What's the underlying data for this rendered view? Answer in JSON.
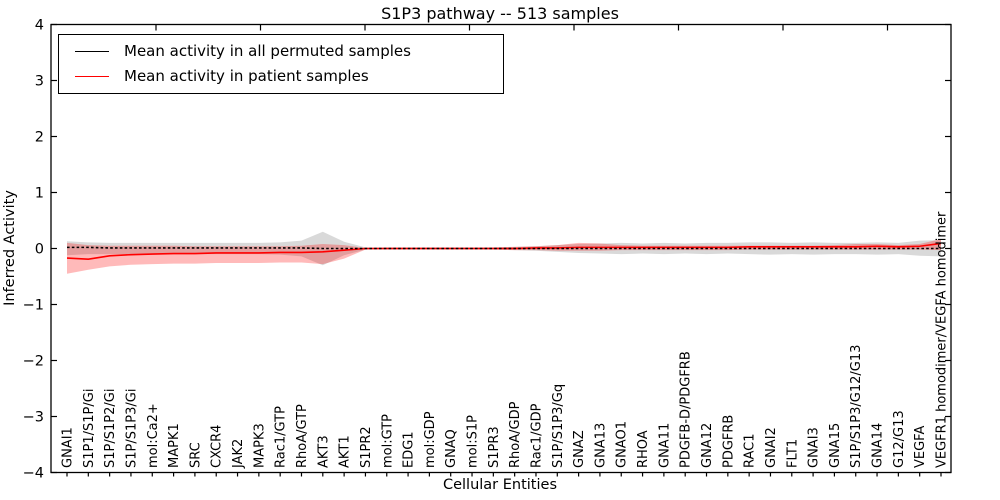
{
  "figure": {
    "title": "S1P3 pathway -- 513 samples",
    "xlabel": "Cellular Entities",
    "ylabel": "Inferred Activity"
  },
  "chart_data": {
    "type": "line",
    "title": "S1P3 pathway -- 513 samples",
    "xlabel": "Cellular Entities",
    "ylabel": "Inferred Activity",
    "ylim": [
      -4,
      4
    ],
    "ytick_labels": [
      "4",
      "3",
      "2",
      "1",
      "0",
      "−1",
      "−2",
      "−3",
      "−4"
    ],
    "yticks": [
      4,
      3,
      2,
      1,
      0,
      -1,
      -2,
      -3,
      -4
    ],
    "grid": false,
    "legend_position": "upper left",
    "categories": [
      "GNAI1",
      "S1P1/S1P/Gi",
      "S1P/S1P2/Gi",
      "S1P/S1P3/Gi",
      "mol:Ca2+",
      "MAPK1",
      "SRC",
      "CXCR4",
      "JAK2",
      "MAPK3",
      "Rac1/GTP",
      "RhoA/GTP",
      "AKT3",
      "AKT1",
      "S1PR2",
      "mol:GTP",
      "EDG1",
      "mol:GDP",
      "GNAQ",
      "mol:S1P",
      "S1PR3",
      "RhoA/GDP",
      "Rac1/GDP",
      "S1P/S1P3/Gq",
      "GNAZ",
      "GNA13",
      "GNAO1",
      "RHOA",
      "GNA11",
      "PDGFB-D/PDGFRB",
      "GNA12",
      "PDGFRB",
      "RAC1",
      "GNAI2",
      "FLT1",
      "GNAI3",
      "GNA15",
      "S1P/S1P3/G12/G13",
      "GNA14",
      "G12/G13",
      "VEGFA",
      "VEGFR1 homodimer/VEGFA homodimer"
    ],
    "series": [
      {
        "name": "Mean activity in all permuted samples",
        "color": "#000000",
        "style": "dotted",
        "values": [
          0.02,
          0.02,
          0.01,
          0.01,
          0.01,
          0.01,
          0.01,
          0.01,
          0.01,
          0.01,
          0.01,
          0.01,
          0,
          0,
          0,
          0,
          0,
          0,
          0,
          0,
          0,
          0,
          0,
          0,
          0,
          0,
          0,
          0,
          0,
          0,
          0,
          0,
          0,
          0,
          0,
          0,
          0,
          0,
          0,
          0,
          0,
          0
        ]
      },
      {
        "name": "Mean activity in patient samples",
        "color": "#ff0000",
        "style": "solid",
        "values": [
          -0.17,
          -0.19,
          -0.13,
          -0.11,
          -0.1,
          -0.09,
          -0.09,
          -0.08,
          -0.08,
          -0.08,
          -0.07,
          -0.07,
          -0.06,
          -0.03,
          0,
          0,
          0,
          0,
          0,
          0,
          0,
          0,
          0.01,
          0.01,
          0.02,
          0.02,
          0.02,
          0.02,
          0.02,
          0.02,
          0.02,
          0.02,
          0.03,
          0.03,
          0.03,
          0.03,
          0.03,
          0.03,
          0.04,
          0.03,
          0.04,
          0.09
        ]
      }
    ],
    "bands": [
      {
        "name": "permuted-samples-range",
        "color": "#787878",
        "alpha": 0.28,
        "lo": [
          -0.12,
          -0.1,
          -0.1,
          -0.1,
          -0.1,
          -0.1,
          -0.1,
          -0.1,
          -0.1,
          -0.1,
          -0.11,
          -0.14,
          -0.3,
          -0.12,
          -0.02,
          -0.015,
          -0.015,
          -0.015,
          -0.015,
          -0.015,
          -0.02,
          -0.03,
          -0.04,
          -0.06,
          -0.08,
          -0.09,
          -0.1,
          -0.09,
          -0.1,
          -0.09,
          -0.1,
          -0.09,
          -0.1,
          -0.11,
          -0.1,
          -0.11,
          -0.1,
          -0.1,
          -0.11,
          -0.1,
          -0.13,
          -0.14
        ],
        "hi": [
          0.13,
          0.11,
          0.1,
          0.1,
          0.1,
          0.1,
          0.1,
          0.1,
          0.1,
          0.1,
          0.11,
          0.14,
          0.3,
          0.12,
          0.02,
          0.015,
          0.015,
          0.015,
          0.015,
          0.015,
          0.02,
          0.03,
          0.04,
          0.06,
          0.08,
          0.09,
          0.1,
          0.09,
          0.1,
          0.09,
          0.1,
          0.1,
          0.11,
          0.11,
          0.1,
          0.11,
          0.1,
          0.1,
          0.11,
          0.1,
          0.14,
          0.15
        ]
      },
      {
        "name": "patient-samples-range",
        "color": "#ff0000",
        "alpha": 0.27,
        "lo": [
          -0.45,
          -0.38,
          -0.32,
          -0.29,
          -0.28,
          -0.27,
          -0.27,
          -0.26,
          -0.26,
          -0.26,
          -0.25,
          -0.25,
          -0.28,
          -0.18,
          -0.02,
          -0.02,
          -0.02,
          -0.02,
          -0.02,
          -0.02,
          -0.02,
          -0.03,
          -0.03,
          -0.04,
          -0.04,
          -0.04,
          -0.03,
          -0.03,
          -0.03,
          -0.03,
          -0.03,
          -0.03,
          -0.02,
          -0.02,
          -0.02,
          -0.02,
          -0.02,
          -0.02,
          -0.02,
          -0.02,
          -0.02,
          -0.03
        ],
        "hi": [
          0.1,
          0.06,
          0.05,
          0.05,
          0.05,
          0.05,
          0.04,
          0.04,
          0.04,
          0.04,
          0.04,
          0.05,
          0.08,
          0.06,
          0.01,
          0.02,
          0.02,
          0.02,
          0.02,
          0.02,
          0.02,
          0.03,
          0.04,
          0.06,
          0.1,
          0.09,
          0.06,
          0.05,
          0.05,
          0.05,
          0.05,
          0.05,
          0.05,
          0.05,
          0.05,
          0.05,
          0.06,
          0.08,
          0.08,
          0.06,
          0.08,
          0.17
        ]
      }
    ]
  }
}
